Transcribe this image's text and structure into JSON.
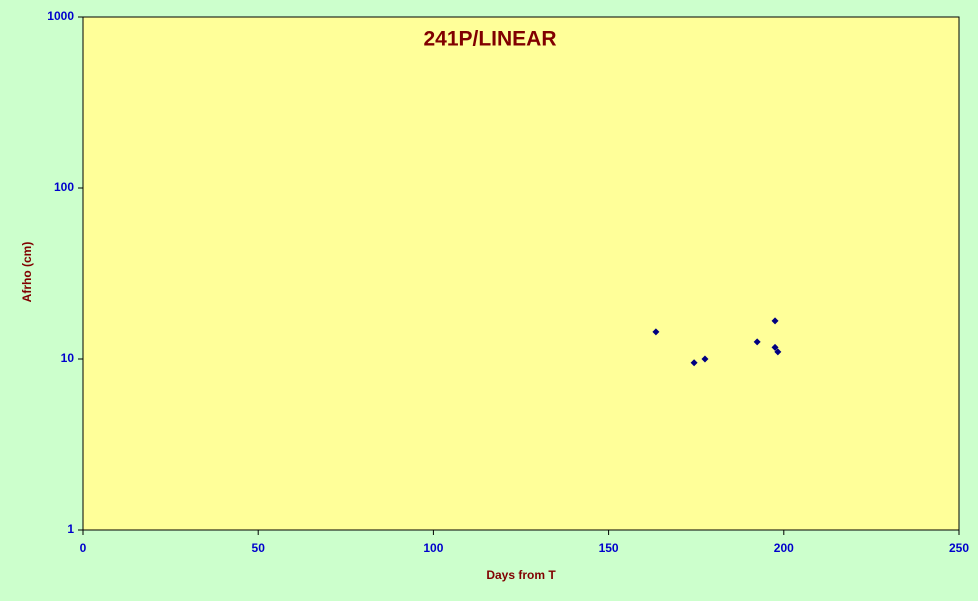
{
  "chart_data": {
    "type": "scatter",
    "title": "241P/LINEAR",
    "x_label": "Days from T",
    "y_label": "Afrho (cm)",
    "x": [
      163.5,
      174.4,
      177.5,
      192.4,
      197.5,
      197.5,
      198.3
    ],
    "values": [
      14.4,
      9.5,
      10.0,
      12.6,
      16.7,
      11.7,
      11.0
    ],
    "color": "#000080",
    "xlim": [
      0,
      250
    ],
    "xticks": [
      0,
      50,
      100,
      150,
      200,
      250
    ],
    "ylim": [
      1,
      1000
    ],
    "yticks": [
      1,
      10,
      100,
      1000
    ],
    "y_scale": "log",
    "grid": false
  }
}
